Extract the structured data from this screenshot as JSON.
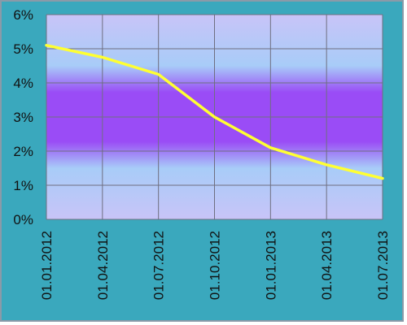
{
  "chart_data": {
    "type": "line",
    "title": "",
    "xlabel": "",
    "ylabel": "",
    "x": [
      "01.01.2012",
      "01.04.2012",
      "01.07.2012",
      "01.10.2012",
      "01.01.2013",
      "01.04.2013",
      "01.07.2013"
    ],
    "series": [
      {
        "values": [
          5.1,
          4.75,
          4.25,
          3.0,
          2.1,
          1.6,
          1.2
        ]
      }
    ],
    "y_unit": "%",
    "yticks": [
      "0%",
      "1%",
      "2%",
      "3%",
      "4%",
      "5%",
      "6%"
    ],
    "ylim": [
      0,
      6
    ],
    "grid": true,
    "legend": "none",
    "colors": {
      "line": "#ffff33",
      "frame_background": "#3aa8bd",
      "grid": "#6f6f80",
      "plot_gradient_edge": "#c8c4f8",
      "plot_gradient_light": "#a8ccf8",
      "plot_gradient_center": "#9a4cf6"
    }
  }
}
